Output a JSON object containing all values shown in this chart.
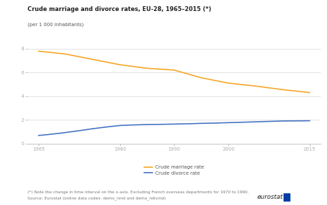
{
  "title": "Crude marriage and divorce rates, EU-28, 1965–2015 (*)",
  "subtitle": "(per 1 000 inhabitants)",
  "marriage_x": [
    1965,
    1970,
    1975,
    1980,
    1985,
    1990,
    1995,
    2000,
    2005,
    2010,
    2015
  ],
  "marriage_y": [
    7.8,
    7.55,
    7.1,
    6.65,
    6.35,
    6.2,
    5.55,
    5.1,
    4.85,
    4.55,
    4.3
  ],
  "divorce_x": [
    1965,
    1966,
    1967,
    1968,
    1969,
    1970,
    1972,
    1975,
    1978,
    1980,
    1982,
    1985,
    1988,
    1990,
    1993,
    1995,
    1998,
    2000,
    2003,
    2005,
    2008,
    2010,
    2013,
    2015
  ],
  "divorce_y": [
    0.68,
    0.72,
    0.77,
    0.82,
    0.87,
    0.93,
    1.05,
    1.25,
    1.42,
    1.52,
    1.56,
    1.6,
    1.62,
    1.64,
    1.67,
    1.7,
    1.73,
    1.76,
    1.8,
    1.83,
    1.87,
    1.9,
    1.91,
    1.92
  ],
  "marriage_color": "#F5A623",
  "divorce_color": "#4472C4",
  "ylim": [
    0,
    9
  ],
  "yticks": [
    0,
    2,
    4,
    6,
    8
  ],
  "xlim": [
    1963,
    2017
  ],
  "xticks": [
    1965,
    1980,
    1990,
    2000,
    2015
  ],
  "xticklabels": [
    "1965",
    "1980",
    "1990",
    "2000",
    "2015"
  ],
  "legend_marriage": "Crude marriage rate",
  "legend_divorce": "Crude divorce rate",
  "footnote1": "(*) Note the change in time interval on the x-axis. Excluding French overseas departments for 1970 to 1990.",
  "footnote2": "Source: Eurostat (online data codes: demo_nind and demo_ndivind)",
  "bg_color": "#ffffff",
  "plot_bg_color": "#ffffff",
  "grid_color": "#dddddd",
  "line_width": 1.2,
  "tick_fontsize": 5.0,
  "title_fontsize": 6.0,
  "subtitle_fontsize": 5.0,
  "legend_fontsize": 5.0,
  "footnote_fontsize": 4.2
}
